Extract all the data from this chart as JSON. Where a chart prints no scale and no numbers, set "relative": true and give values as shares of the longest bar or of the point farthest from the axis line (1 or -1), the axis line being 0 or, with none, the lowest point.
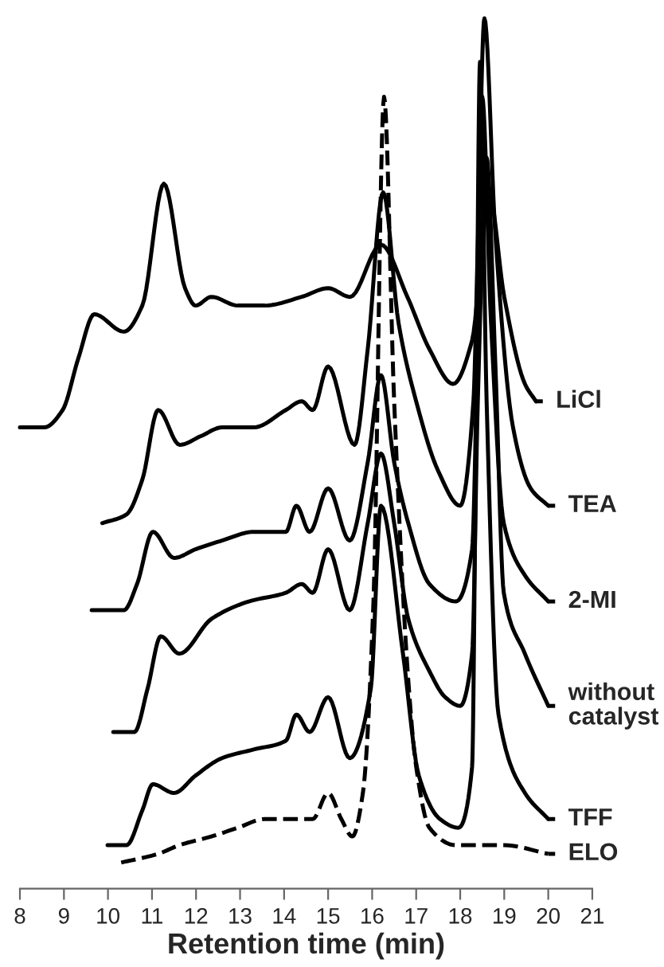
{
  "chart_data": {
    "type": "line",
    "relative": true,
    "xlabel": "Retention time (min)",
    "xlim": [
      8,
      21
    ],
    "xticks": [
      8,
      9,
      10,
      11,
      12,
      13,
      14,
      15,
      16,
      17,
      18,
      19,
      20,
      21
    ],
    "grid": false,
    "legend": "right",
    "marker": "none",
    "series": [
      {
        "name": "LiCl",
        "color": "#000000",
        "line_style": "solid",
        "x": [
          8.0,
          8.55,
          8.97,
          9.33,
          9.69,
          10.36,
          10.78,
          11.27,
          11.75,
          11.99,
          12.35,
          12.95,
          13.56,
          14.4,
          15.0,
          15.5,
          16.2,
          16.8,
          17.3,
          17.84,
          18.27,
          18.65,
          19.0,
          19.47,
          19.72
        ],
        "values": [
          0.53,
          0.53,
          0.55,
          0.61,
          0.66,
          0.64,
          0.67,
          0.81,
          0.69,
          0.67,
          0.68,
          0.67,
          0.67,
          0.68,
          0.69,
          0.68,
          0.74,
          0.68,
          0.62,
          0.58,
          0.63,
          0.8,
          0.68,
          0.58,
          0.56
        ]
      },
      {
        "name": "TEA",
        "color": "#000000",
        "line_style": "solid",
        "x": [
          9.87,
          10.42,
          10.78,
          11.14,
          11.63,
          12.11,
          12.59,
          13.31,
          14.04,
          14.4,
          14.65,
          15.0,
          15.6,
          15.9,
          16.25,
          16.6,
          17.0,
          17.5,
          18.0,
          18.3,
          18.4,
          18.55,
          18.8,
          19.2,
          19.6,
          20.0
        ],
        "values": [
          0.42,
          0.43,
          0.47,
          0.55,
          0.51,
          0.52,
          0.53,
          0.53,
          0.55,
          0.56,
          0.55,
          0.6,
          0.51,
          0.62,
          0.8,
          0.65,
          0.56,
          0.48,
          0.44,
          0.56,
          0.74,
          1.0,
          0.75,
          0.53,
          0.46,
          0.44
        ]
      },
      {
        "name": "2-MI",
        "color": "#000000",
        "line_style": "solid",
        "x": [
          9.63,
          10.36,
          10.66,
          11.02,
          11.5,
          11.99,
          12.59,
          13.31,
          14.04,
          14.28,
          14.58,
          15.0,
          15.49,
          15.9,
          16.2,
          16.5,
          16.82,
          17.3,
          17.9,
          18.27,
          18.4,
          18.5,
          18.7,
          18.99,
          19.47,
          20.0
        ],
        "values": [
          0.32,
          0.32,
          0.35,
          0.41,
          0.38,
          0.39,
          0.4,
          0.41,
          0.41,
          0.44,
          0.41,
          0.46,
          0.4,
          0.49,
          0.59,
          0.49,
          0.42,
          0.35,
          0.33,
          0.39,
          0.65,
          0.91,
          0.65,
          0.42,
          0.36,
          0.33
        ]
      },
      {
        "name": "without\ncatalyst",
        "color": "#000000",
        "line_style": "solid",
        "x": [
          10.12,
          10.6,
          10.9,
          11.2,
          11.62,
          12.35,
          13.2,
          14.04,
          14.4,
          14.65,
          15.0,
          15.49,
          15.9,
          16.2,
          16.5,
          16.82,
          17.3,
          17.66,
          18.0,
          18.27,
          18.4,
          18.6,
          18.8,
          18.99,
          19.47,
          20.0
        ],
        "values": [
          0.18,
          0.18,
          0.23,
          0.29,
          0.27,
          0.31,
          0.33,
          0.34,
          0.35,
          0.34,
          0.39,
          0.32,
          0.42,
          0.5,
          0.42,
          0.31,
          0.25,
          0.22,
          0.21,
          0.27,
          0.56,
          0.84,
          0.6,
          0.34,
          0.27,
          0.21
        ]
      },
      {
        "name": "TFF",
        "color": "#000000",
        "line_style": "solid",
        "x": [
          9.99,
          10.42,
          10.78,
          11.02,
          11.5,
          11.99,
          12.59,
          13.31,
          14.04,
          14.28,
          14.58,
          15.0,
          15.49,
          15.97,
          16.2,
          16.7,
          17.06,
          17.54,
          17.96,
          18.27,
          18.35,
          18.45,
          18.6,
          18.87,
          19.47,
          20.0
        ],
        "values": [
          0.05,
          0.05,
          0.09,
          0.12,
          0.11,
          0.13,
          0.15,
          0.16,
          0.17,
          0.2,
          0.18,
          0.22,
          0.15,
          0.23,
          0.44,
          0.27,
          0.13,
          0.08,
          0.07,
          0.14,
          0.47,
          0.95,
          0.56,
          0.2,
          0.11,
          0.08
        ]
      },
      {
        "name": "ELO",
        "color": "#000000",
        "line_style": "dashed",
        "x": [
          10.3,
          11.14,
          11.62,
          12.35,
          12.95,
          13.56,
          14.28,
          14.65,
          15.0,
          15.3,
          15.55,
          15.79,
          16.03,
          16.27,
          16.5,
          16.82,
          17.0,
          17.3,
          17.9,
          19.0,
          20.0
        ],
        "values": [
          0.03,
          0.04,
          0.05,
          0.06,
          0.07,
          0.08,
          0.08,
          0.08,
          0.11,
          0.08,
          0.06,
          0.11,
          0.33,
          0.91,
          0.56,
          0.24,
          0.14,
          0.07,
          0.05,
          0.05,
          0.04
        ]
      }
    ]
  }
}
